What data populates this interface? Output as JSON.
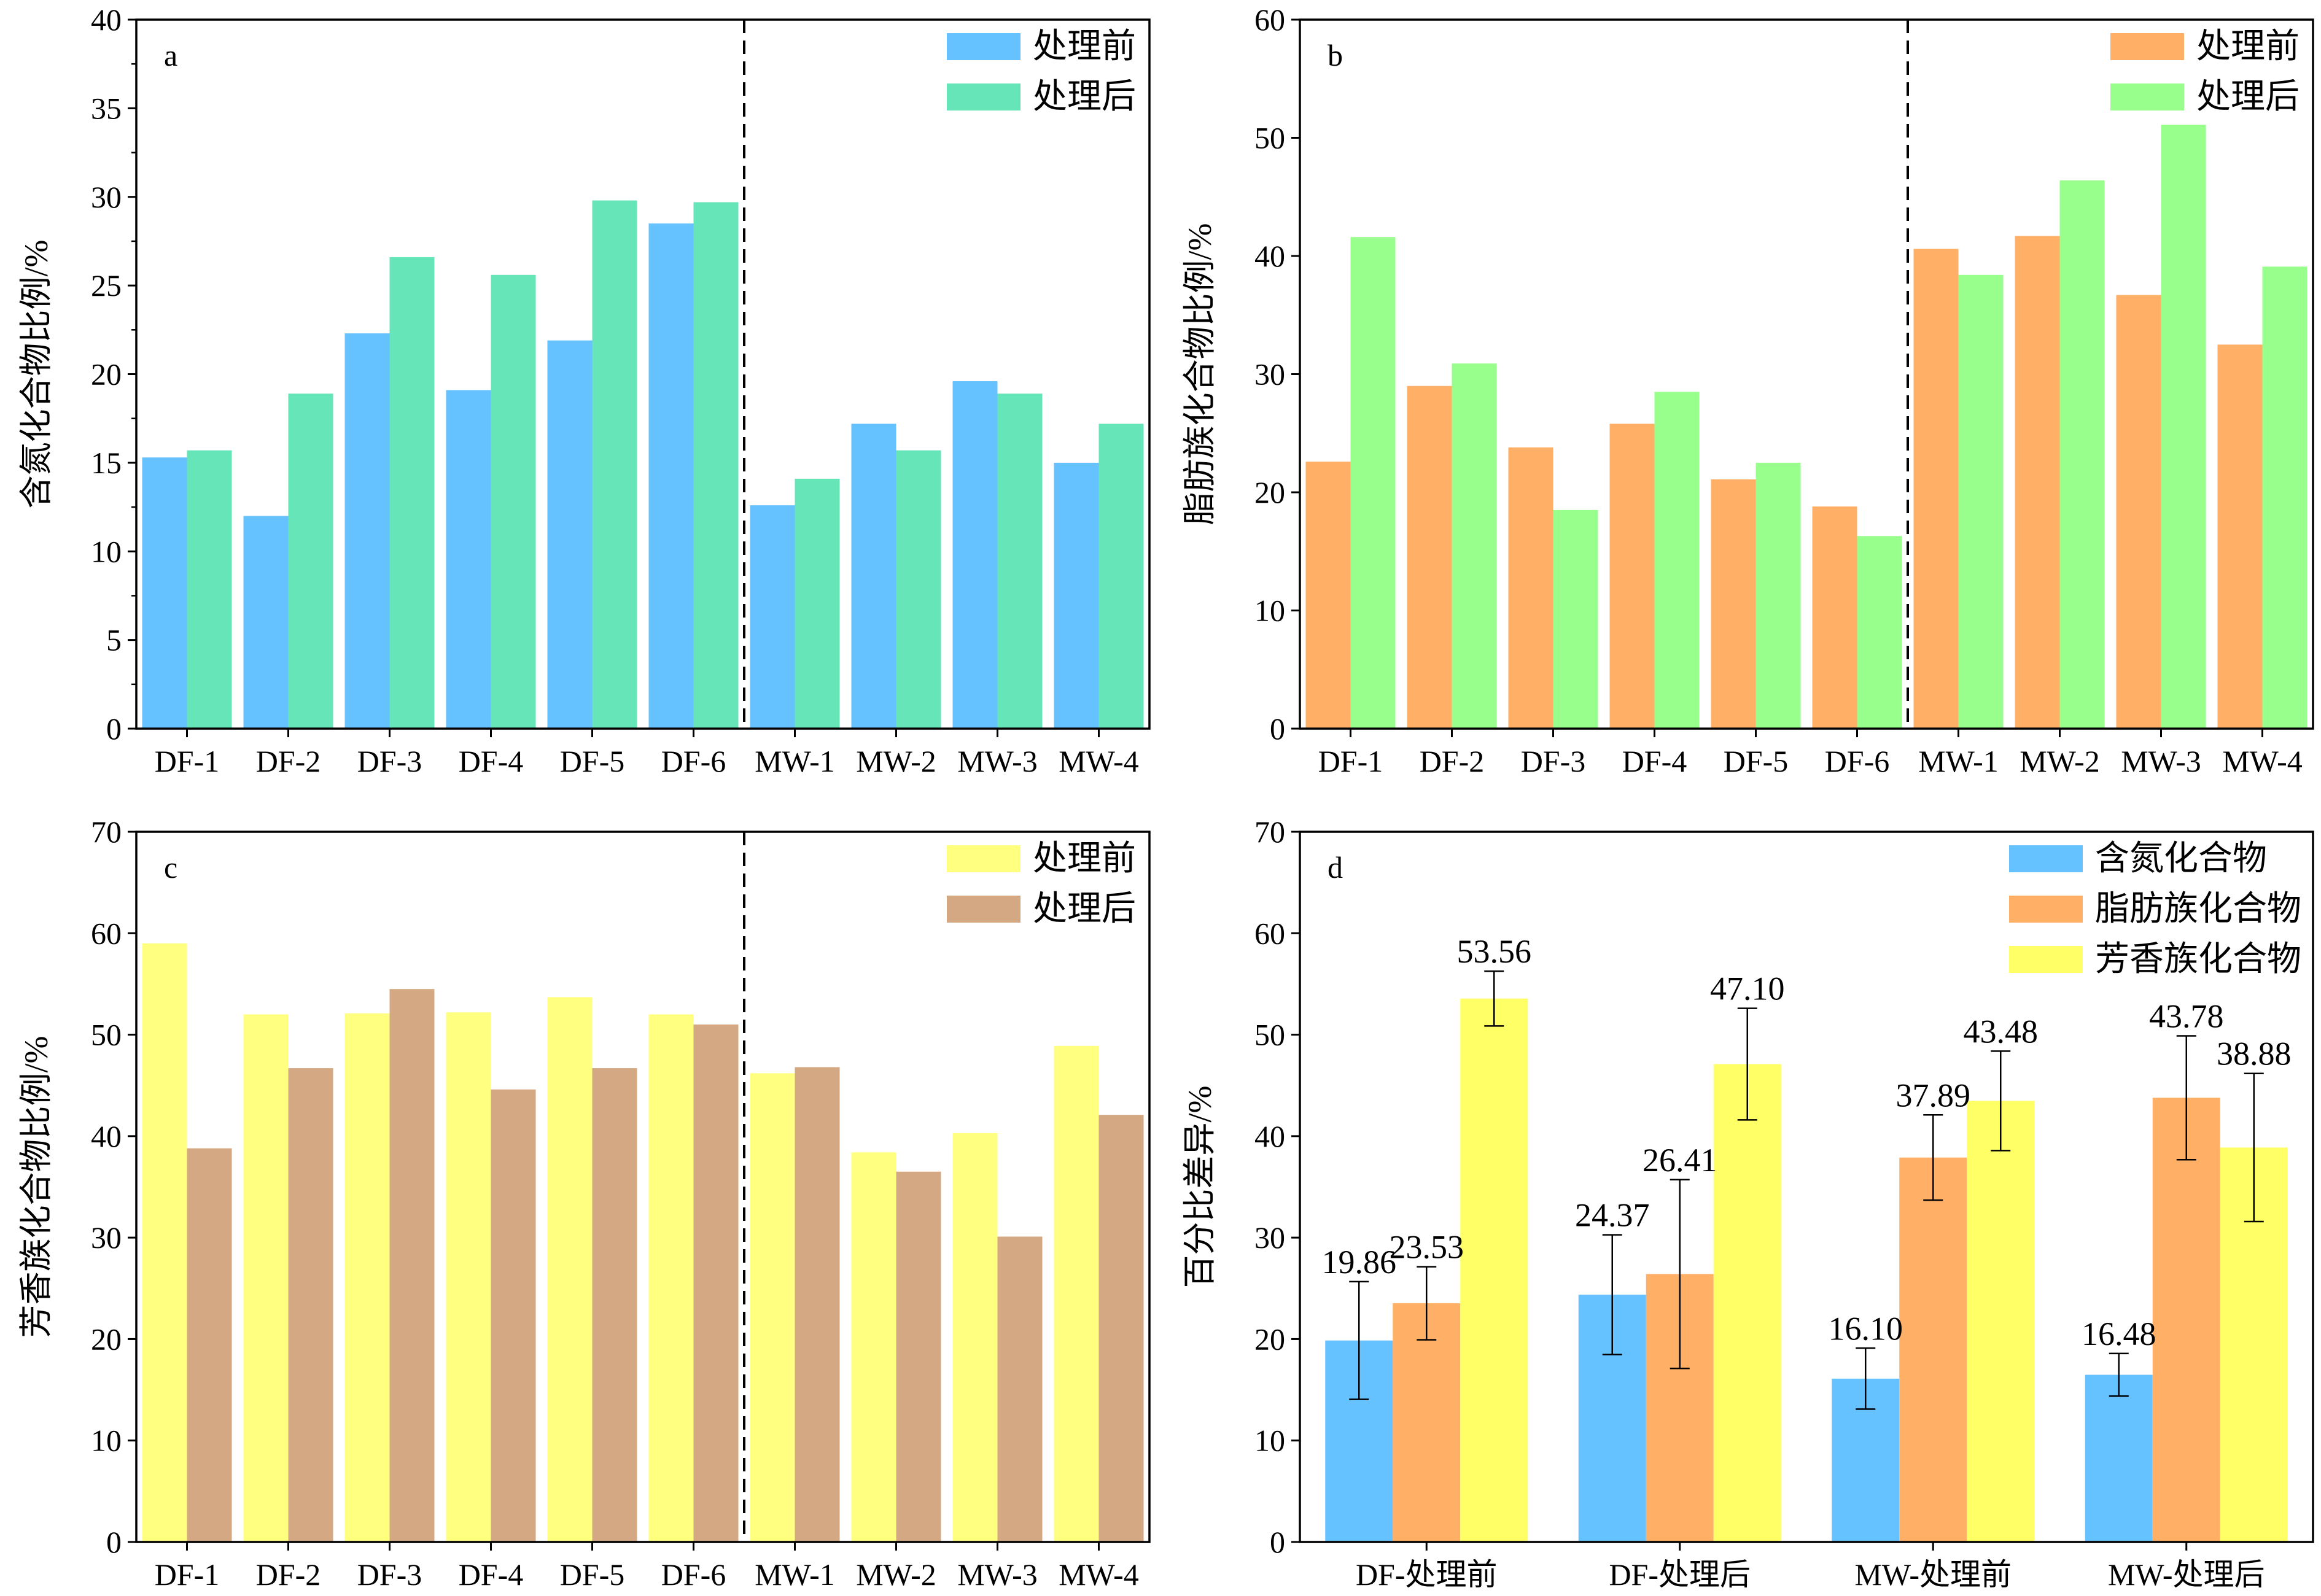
{
  "chart_data": [
    {
      "panel": "a",
      "type": "bar",
      "ylabel": "含氮化合物比例/%",
      "ylim": [
        0,
        40
      ],
      "yticks": [
        0,
        5,
        10,
        15,
        20,
        25,
        30,
        35,
        40
      ],
      "categories": [
        "DF-1",
        "DF-2",
        "DF-3",
        "DF-4",
        "DF-5",
        "DF-6",
        "MW-1",
        "MW-2",
        "MW-3",
        "MW-4"
      ],
      "divider_after_index": 5,
      "legend_position": "top-right",
      "series": [
        {
          "name": "处理前",
          "color": "#66c2ff",
          "values": [
            15.3,
            12.0,
            22.3,
            19.1,
            21.9,
            28.5,
            12.6,
            17.2,
            19.6,
            15.0
          ]
        },
        {
          "name": "处理后",
          "color": "#66e6b8",
          "values": [
            15.7,
            18.9,
            26.6,
            25.6,
            29.8,
            29.7,
            14.1,
            15.7,
            18.9,
            17.2
          ]
        }
      ]
    },
    {
      "panel": "b",
      "type": "bar",
      "ylabel": "脂肪族化合物比例/%",
      "ylim": [
        0,
        60
      ],
      "yticks": [
        0,
        10,
        20,
        30,
        40,
        50,
        60
      ],
      "categories": [
        "DF-1",
        "DF-2",
        "DF-3",
        "DF-4",
        "DF-5",
        "DF-6",
        "MW-1",
        "MW-2",
        "MW-3",
        "MW-4"
      ],
      "divider_after_index": 5,
      "legend_position": "top-right",
      "series": [
        {
          "name": "处理前",
          "color": "#ffb066",
          "values": [
            22.6,
            29.0,
            23.8,
            25.8,
            21.1,
            18.8,
            40.6,
            41.7,
            36.7,
            32.5
          ]
        },
        {
          "name": "处理后",
          "color": "#99ff8c",
          "values": [
            41.6,
            30.9,
            18.5,
            28.5,
            22.5,
            16.3,
            38.4,
            46.4,
            51.1,
            39.1
          ]
        }
      ]
    },
    {
      "panel": "c",
      "type": "bar",
      "ylabel": "芳香族化合物比例/%",
      "ylim": [
        0,
        70
      ],
      "yticks": [
        0,
        10,
        20,
        30,
        40,
        50,
        60,
        70
      ],
      "categories": [
        "DF-1",
        "DF-2",
        "DF-3",
        "DF-4",
        "DF-5",
        "DF-6",
        "MW-1",
        "MW-2",
        "MW-3",
        "MW-4"
      ],
      "divider_after_index": 5,
      "legend_position": "top-right",
      "series": [
        {
          "name": "处理前",
          "color": "#ffff80",
          "values": [
            59.0,
            52.0,
            52.1,
            52.2,
            53.7,
            52.0,
            46.2,
            38.4,
            40.3,
            48.9
          ]
        },
        {
          "name": "处理后",
          "color": "#d4a882",
          "values": [
            38.8,
            46.7,
            54.5,
            44.6,
            46.7,
            51.0,
            46.8,
            36.5,
            30.1,
            42.1
          ]
        }
      ]
    },
    {
      "panel": "d",
      "type": "bar",
      "ylabel": "百分比差异/%",
      "ylim": [
        0,
        70
      ],
      "yticks": [
        0,
        10,
        20,
        30,
        40,
        50,
        60,
        70
      ],
      "categories": [
        "DF-处理前",
        "DF-处理后",
        "MW-处理前",
        "MW-处理后"
      ],
      "legend_position": "top-right",
      "series": [
        {
          "name": "含氮化合物",
          "color": "#66c2ff",
          "values": [
            19.86,
            24.37,
            16.1,
            16.48
          ],
          "labels": [
            "19.86",
            "24.37",
            "16.10",
            "16.48"
          ],
          "errors": [
            5.8,
            5.9,
            3.0,
            2.1
          ]
        },
        {
          "name": "脂肪族化合物",
          "color": "#ffb066",
          "values": [
            23.53,
            26.41,
            37.89,
            43.78
          ],
          "labels": [
            "23.53",
            "26.41",
            "37.89",
            "43.78"
          ],
          "errors": [
            3.6,
            9.3,
            4.2,
            6.1
          ]
        },
        {
          "name": "芳香族化合物",
          "color": "#ffff66",
          "values": [
            53.56,
            47.1,
            43.48,
            38.88
          ],
          "labels": [
            "53.56",
            "47.10",
            "43.48",
            "38.88"
          ],
          "errors": [
            2.7,
            5.5,
            4.9,
            7.3
          ]
        }
      ]
    }
  ]
}
